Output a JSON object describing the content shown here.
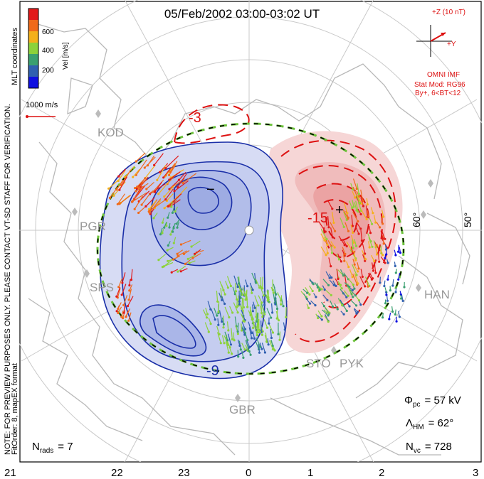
{
  "title": "05/Feb/2002 03:00-03:02 UT",
  "left_note": "NOTE: FOR PREVIEW PURPOSES ONLY. PLEASE CONTACT VT-SD STAFF FOR VERIFICATION.",
  "left_note2": "FitOrder: 8, mapEX format",
  "coord_label": "MLT coordinates",
  "colorbar": {
    "title": "Vel [m/s]",
    "ticks": [
      "600",
      "400",
      "200"
    ],
    "colors": [
      "#e21a1a",
      "#f06a1a",
      "#f4b01a",
      "#8cd23a",
      "#3aa070",
      "#3060b0",
      "#1010e0"
    ]
  },
  "scale_vector_label": "1000 m/s",
  "imf": {
    "bz_label": "+Z (10 nT)",
    "by_label": "+Y",
    "source": "OMNI IMF",
    "model": "Stat Mod: RG96",
    "condition": "By+, 6<BT<12"
  },
  "stations": [
    "KOD",
    "PGR",
    "SPS",
    "HAN",
    "STO",
    "PYK",
    "GBR"
  ],
  "lat_labels": [
    "60°",
    "50°"
  ],
  "contour_labels": [
    "-3",
    "-15",
    "-9"
  ],
  "mlt_labels": [
    "21",
    "22",
    "23",
    "0",
    "1",
    "2",
    "3"
  ],
  "stats": {
    "phi_label": "Φ",
    "phi_sub": "pc",
    "phi_value": "= 57 kV",
    "lambda_label": "Λ",
    "lambda_sub": "HM",
    "lambda_value": "= 62°",
    "nvc_label": "N",
    "nvc_sub": "vc",
    "nvc_value": "= 728",
    "nrads_label": "N",
    "nrads_sub": "rads",
    "nrads_value": "= 7"
  }
}
